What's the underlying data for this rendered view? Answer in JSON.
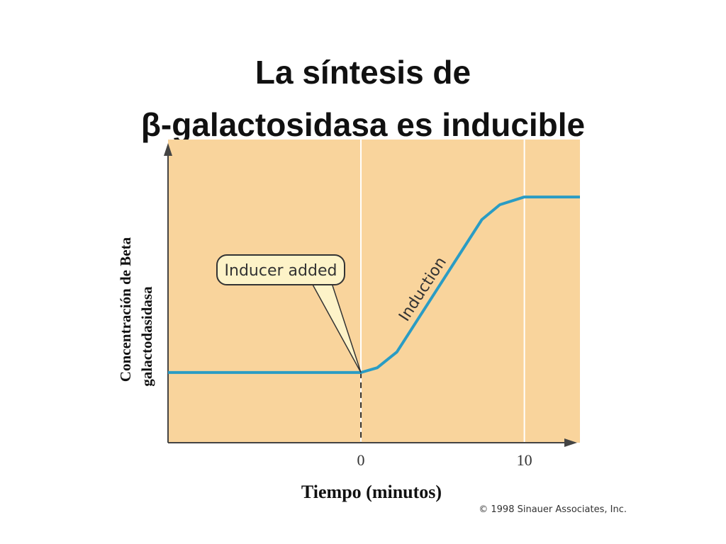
{
  "chart_data": {
    "type": "line",
    "title": [
      "La síntesis de",
      "β-galactosidasa es inducible"
    ],
    "x_label": "Tiempo (minutos)",
    "y_label": [
      "Concentración de Beta",
      "galactodasidasa"
    ],
    "x": [
      -11.8,
      0,
      1,
      2.2,
      7.4,
      8.5,
      10,
      13.4
    ],
    "series": [
      {
        "color": "#2a9cc4",
        "values": [
          23.6,
          23.6,
          25.2,
          30.5,
          75,
          80,
          82.6,
          82.6
        ]
      }
    ],
    "xlim": [
      -11.8,
      13.4
    ],
    "ylim": [
      0,
      100
    ],
    "xticks": [
      0,
      10
    ],
    "grid": true,
    "annotations": [
      "Inducer added",
      "Induction"
    ],
    "credit": "© 1998 Sinauer Associates, Inc."
  }
}
